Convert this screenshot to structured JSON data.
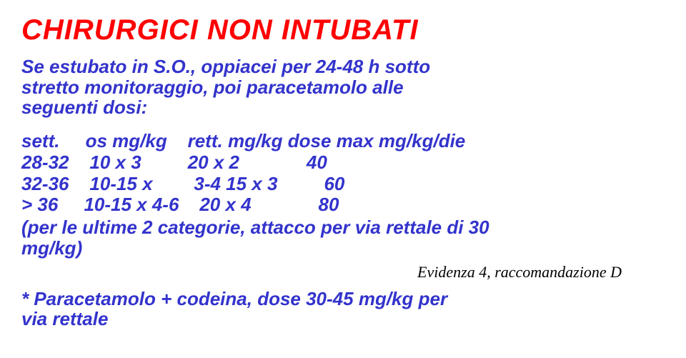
{
  "title": "CHIRURGICI NON INTUBATI",
  "intro_line1": "Se estubato in S.O., oppiacei per 24-48 h sotto",
  "intro_line2": "stretto monitoraggio, poi paracetamolo alle",
  "intro_line3": "seguenti dosi:",
  "table": {
    "header": "sett.     os mg/kg    rett. mg/kg dose max mg/kg/die",
    "row1": "28-32    10 x 3         20 x 2             40",
    "row2": "32-36    10-15 x        3-4 15 x 3         60",
    "row3": "> 36     10-15 x 4-6    20 x 4             80"
  },
  "note_line1": "(per le ultime 2 categorie, attacco per via rettale di 30",
  "note_line2": "mg/kg)",
  "evidence": "Evidenza 4, raccomandazione D",
  "footer_line1": "* Paracetamolo + codeina, dose 30-45 mg/kg per",
  "footer_line2": "via rettale",
  "colors": {
    "title_color": "#ff0000",
    "body_color": "#3333cc",
    "evidence_color": "#000000",
    "background": "#ffffff"
  },
  "typography": {
    "font_family": "Comic Sans MS",
    "title_fontsize": 40,
    "body_fontsize": 26,
    "evidence_fontsize": 22,
    "style": "bold italic"
  }
}
